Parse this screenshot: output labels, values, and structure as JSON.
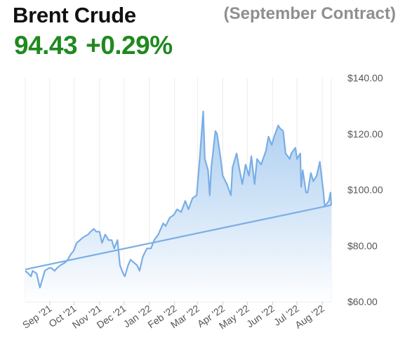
{
  "header": {
    "title": "Brent Crude",
    "contract": "(September Contract)",
    "price": "94.43",
    "change": "+0.29%"
  },
  "colors": {
    "price_up": "#1f8a1f",
    "line": "#7aaee6",
    "fill_top": "#9ec6ee",
    "fill_bottom": "#ffffff",
    "grid": "#ececec"
  },
  "chart_data": {
    "type": "area",
    "title": "Brent Crude",
    "xlabel": "",
    "ylabel": "",
    "ylim": [
      60,
      140
    ],
    "yticks": [
      60,
      80,
      100,
      120,
      140
    ],
    "ytick_labels": [
      "$60.00",
      "$80.00",
      "$100.00",
      "$120.00",
      "$140.00"
    ],
    "y_axis_position": "right",
    "grid": "vertical",
    "x_tick_labels": [
      "Sep '21",
      "Oct '21",
      "Nov '21",
      "Dec '21",
      "Jan '22",
      "Feb '22",
      "Mar '22",
      "Apr '22",
      "May '22",
      "Jun '22",
      "Jul '22",
      "Aug '22"
    ],
    "x_tick_dates": [
      "2021-09-01",
      "2021-10-01",
      "2021-11-01",
      "2021-12-01",
      "2022-01-01",
      "2022-02-01",
      "2022-03-01",
      "2022-04-01",
      "2022-05-01",
      "2022-06-01",
      "2022-07-01",
      "2022-08-01"
    ],
    "xlim": [
      "2021-08-02",
      "2022-08-12"
    ],
    "series": [
      {
        "values": [
          [
            "2021-08-02",
            71
          ],
          [
            "2021-08-06",
            70
          ],
          [
            "2021-08-09",
            69
          ],
          [
            "2021-08-11",
            71
          ],
          [
            "2021-08-16",
            70
          ],
          [
            "2021-08-19",
            66
          ],
          [
            "2021-08-20",
            65
          ],
          [
            "2021-08-23",
            68
          ],
          [
            "2021-08-26",
            71
          ],
          [
            "2021-08-31",
            72
          ],
          [
            "2021-09-03",
            72
          ],
          [
            "2021-09-07",
            71
          ],
          [
            "2021-09-10",
            72
          ],
          [
            "2021-09-14",
            73
          ],
          [
            "2021-09-20",
            74
          ],
          [
            "2021-09-23",
            75
          ],
          [
            "2021-09-27",
            77
          ],
          [
            "2021-09-30",
            78
          ],
          [
            "2021-10-04",
            81
          ],
          [
            "2021-10-08",
            82
          ],
          [
            "2021-10-12",
            83
          ],
          [
            "2021-10-18",
            84
          ],
          [
            "2021-10-21",
            85
          ],
          [
            "2021-10-25",
            86
          ],
          [
            "2021-10-28",
            85
          ],
          [
            "2021-11-01",
            85
          ],
          [
            "2021-11-04",
            81
          ],
          [
            "2021-11-08",
            84
          ],
          [
            "2021-11-12",
            82
          ],
          [
            "2021-11-16",
            82
          ],
          [
            "2021-11-19",
            79
          ],
          [
            "2021-11-23",
            82
          ],
          [
            "2021-11-26",
            73
          ],
          [
            "2021-11-30",
            70
          ],
          [
            "2021-12-02",
            69
          ],
          [
            "2021-12-06",
            73
          ],
          [
            "2021-12-09",
            75
          ],
          [
            "2021-12-13",
            74
          ],
          [
            "2021-12-17",
            73
          ],
          [
            "2021-12-20",
            71
          ],
          [
            "2021-12-24",
            76
          ],
          [
            "2021-12-29",
            79
          ],
          [
            "2022-01-03",
            79
          ],
          [
            "2022-01-07",
            82
          ],
          [
            "2022-01-12",
            84
          ],
          [
            "2022-01-18",
            88
          ],
          [
            "2022-01-21",
            87
          ],
          [
            "2022-01-26",
            90
          ],
          [
            "2022-01-31",
            91
          ],
          [
            "2022-02-04",
            93
          ],
          [
            "2022-02-09",
            92
          ],
          [
            "2022-02-14",
            96
          ],
          [
            "2022-02-18",
            93
          ],
          [
            "2022-02-23",
            97
          ],
          [
            "2022-02-28",
            98
          ],
          [
            "2022-03-02",
            105
          ],
          [
            "2022-03-04",
            112
          ],
          [
            "2022-03-07",
            124
          ],
          [
            "2022-03-08",
            128
          ],
          [
            "2022-03-10",
            111
          ],
          [
            "2022-03-14",
            107
          ],
          [
            "2022-03-16",
            98
          ],
          [
            "2022-03-18",
            108
          ],
          [
            "2022-03-23",
            121
          ],
          [
            "2022-03-25",
            120
          ],
          [
            "2022-03-29",
            112
          ],
          [
            "2022-04-01",
            105
          ],
          [
            "2022-04-06",
            102
          ],
          [
            "2022-04-11",
            98
          ],
          [
            "2022-04-13",
            108
          ],
          [
            "2022-04-18",
            113
          ],
          [
            "2022-04-21",
            108
          ],
          [
            "2022-04-25",
            102
          ],
          [
            "2022-04-29",
            109
          ],
          [
            "2022-05-03",
            105
          ],
          [
            "2022-05-06",
            112
          ],
          [
            "2022-05-10",
            102
          ],
          [
            "2022-05-13",
            111
          ],
          [
            "2022-05-18",
            109
          ],
          [
            "2022-05-24",
            114
          ],
          [
            "2022-05-27",
            119
          ],
          [
            "2022-05-31",
            116
          ],
          [
            "2022-06-03",
            119
          ],
          [
            "2022-06-08",
            123
          ],
          [
            "2022-06-10",
            122
          ],
          [
            "2022-06-14",
            121
          ],
          [
            "2022-06-17",
            113
          ],
          [
            "2022-06-22",
            111
          ],
          [
            "2022-06-24",
            113
          ],
          [
            "2022-06-29",
            115
          ],
          [
            "2022-07-01",
            111
          ],
          [
            "2022-07-05",
            113
          ],
          [
            "2022-07-06",
            101
          ],
          [
            "2022-07-08",
            107
          ],
          [
            "2022-07-12",
            99
          ],
          [
            "2022-07-14",
            99
          ],
          [
            "2022-07-18",
            106
          ],
          [
            "2022-07-21",
            103
          ],
          [
            "2022-07-25",
            105
          ],
          [
            "2022-07-29",
            110
          ],
          [
            "2022-08-02",
            100
          ],
          [
            "2022-08-04",
            94
          ],
          [
            "2022-08-09",
            96
          ],
          [
            "2022-08-11",
            99
          ],
          [
            "2022-08-12",
            94.43
          ]
        ]
      },
      {
        "type": "line",
        "values": [
          [
            "2021-08-02",
            71.5
          ],
          [
            "2022-08-12",
            94.5
          ]
        ]
      }
    ]
  }
}
